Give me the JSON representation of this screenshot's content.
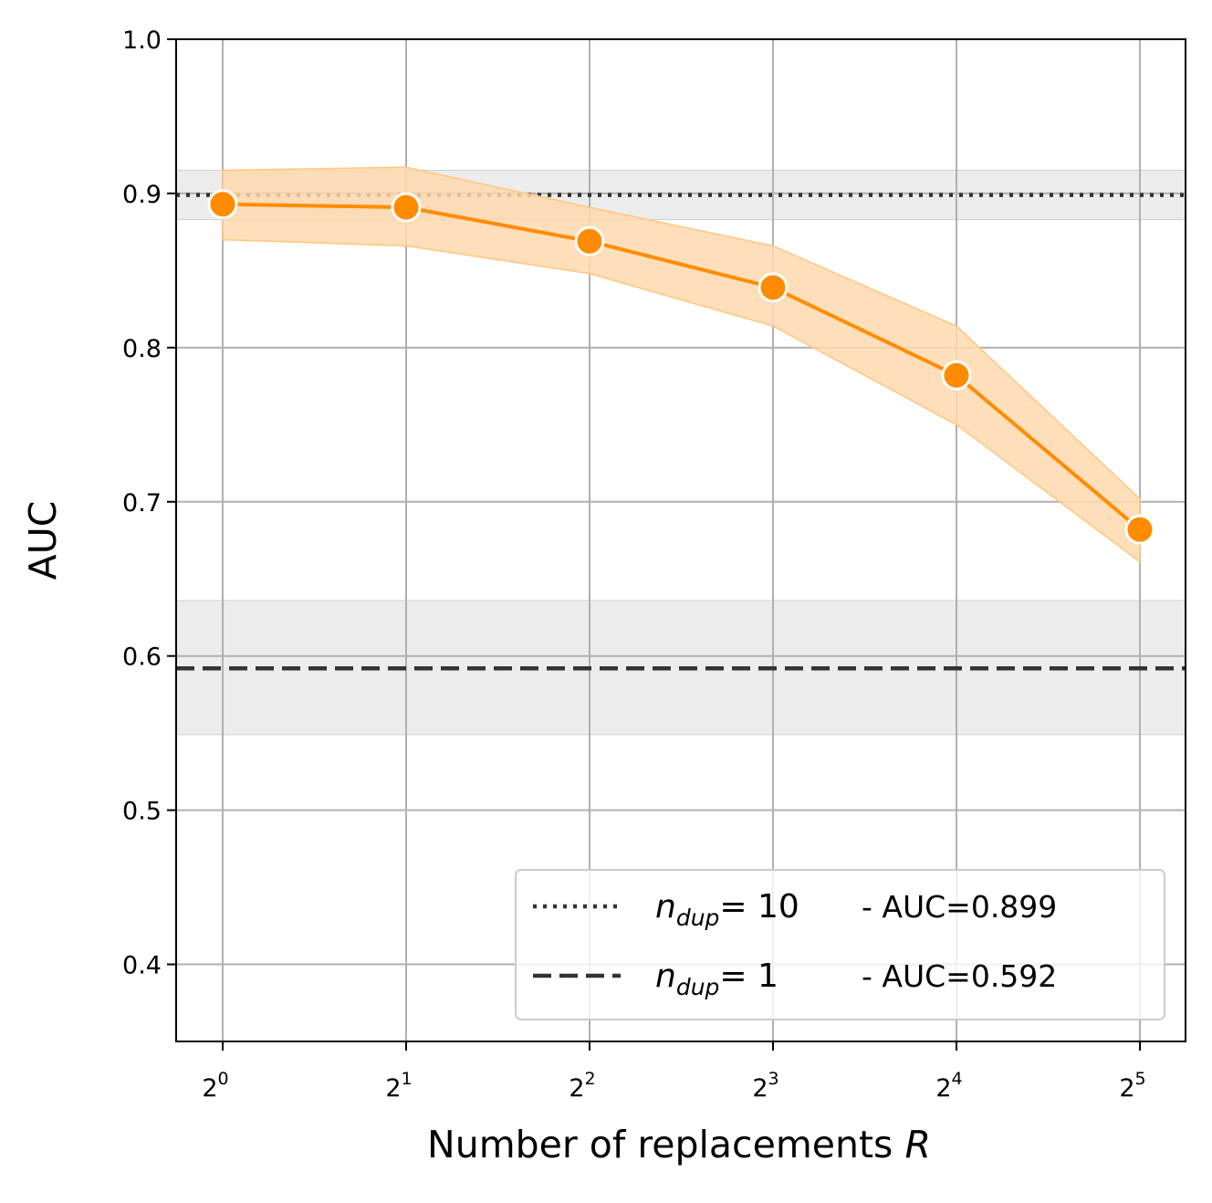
{
  "chart_data": {
    "type": "line",
    "xscale": "log2",
    "x": [
      1,
      2,
      4,
      8,
      16,
      32
    ],
    "x_tick_labels": [
      {
        "base": "2",
        "exp": "0"
      },
      {
        "base": "2",
        "exp": "1"
      },
      {
        "base": "2",
        "exp": "2"
      },
      {
        "base": "2",
        "exp": "3"
      },
      {
        "base": "2",
        "exp": "4"
      },
      {
        "base": "2",
        "exp": "5"
      }
    ],
    "xlabel": "Number of replacements",
    "xlabel_var": "R",
    "ylabel": "AUC",
    "ylim": [
      0.35,
      1.0
    ],
    "y_ticks": [
      "0.4",
      "0.5",
      "0.6",
      "0.7",
      "0.8",
      "0.9",
      "1.0"
    ],
    "grid": true,
    "series": [
      {
        "values": [
          0.893,
          0.891,
          0.869,
          0.839,
          0.782,
          0.682
        ],
        "band_upper": [
          0.915,
          0.917,
          0.891,
          0.866,
          0.814,
          0.702
        ],
        "band_lower": [
          0.87,
          0.866,
          0.848,
          0.814,
          0.75,
          0.661
        ],
        "color": "#ff8c00",
        "band_color": "#ffd9ad",
        "marker": "circle"
      }
    ],
    "reference_lines": [
      {
        "label_var": "n",
        "label_sub": "dup",
        "label_eq": "= 10",
        "label_rest": "- AUC=0.899",
        "value": 0.899,
        "band": [
          0.883,
          0.915
        ],
        "style": "dotted",
        "color": "#333333"
      },
      {
        "label_var": "n",
        "label_sub": "dup",
        "label_eq": "= 1",
        "label_rest": "- AUC=0.592",
        "value": 0.592,
        "band": [
          0.549,
          0.636
        ],
        "style": "dashed",
        "color": "#333333"
      }
    ],
    "legend_position": "lower-right"
  }
}
